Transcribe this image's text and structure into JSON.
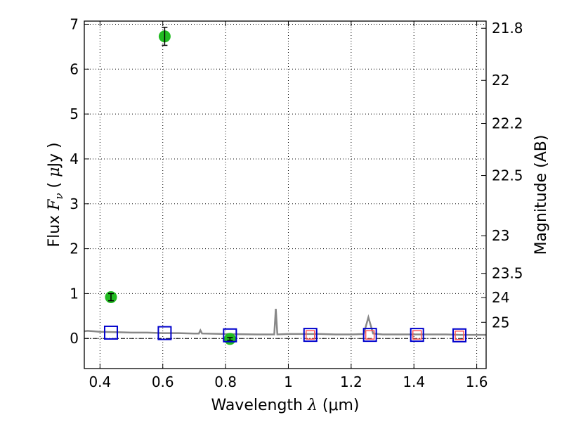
{
  "chart_data": {
    "type": "scatter",
    "xlabel": {
      "prefix": "Wavelength  ",
      "symbol": "λ",
      "units": " (μm)"
    },
    "ylabel": {
      "prefix": "Flux  ",
      "symbol": "F",
      "subscript": "ν",
      "units_open": "  ( ",
      "units_mu": "μ",
      "units_close": "Jy )"
    },
    "y2label": "Magnitude (AB)",
    "xlim": [
      0.35,
      1.63
    ],
    "ylim": [
      -0.67,
      7.07
    ],
    "grid": true,
    "x_ticks": [
      {
        "value": 0.4,
        "label": "0.4"
      },
      {
        "value": 0.6,
        "label": "0.6"
      },
      {
        "value": 0.8,
        "label": "0.8"
      },
      {
        "value": 1.0,
        "label": "1"
      },
      {
        "value": 1.2,
        "label": "1.2"
      },
      {
        "value": 1.4,
        "label": "1.4"
      },
      {
        "value": 1.6,
        "label": "1.6"
      }
    ],
    "y_ticks": [
      {
        "value": 0,
        "label": "0"
      },
      {
        "value": 1,
        "label": "1"
      },
      {
        "value": 2,
        "label": "2"
      },
      {
        "value": 3,
        "label": "3"
      },
      {
        "value": 4,
        "label": "4"
      },
      {
        "value": 5,
        "label": "5"
      },
      {
        "value": 6,
        "label": "6"
      },
      {
        "value": 7,
        "label": "7"
      }
    ],
    "y2_ticks": [
      {
        "flux": 6.91,
        "label": "21.8"
      },
      {
        "flux": 5.75,
        "label": "22"
      },
      {
        "flux": 4.79,
        "label": "22.2"
      },
      {
        "flux": 3.63,
        "label": "22.5"
      },
      {
        "flux": 2.29,
        "label": "23"
      },
      {
        "flux": 1.45,
        "label": "23.5"
      },
      {
        "flux": 0.91,
        "label": "24"
      },
      {
        "flux": 0.36,
        "label": "25"
      }
    ],
    "series": [
      {
        "marker": "circle",
        "color": "#22bb22",
        "points": [
          {
            "x": 0.435,
            "y": 0.92,
            "err": 0.08
          },
          {
            "x": 0.606,
            "y": 6.73,
            "err": 0.2
          },
          {
            "x": 0.814,
            "y": -0.01,
            "err": 0.03
          }
        ]
      },
      {
        "marker": "square-open",
        "color": "#0000cc",
        "points": [
          {
            "x": 0.435,
            "y": 0.13
          },
          {
            "x": 0.606,
            "y": 0.12
          },
          {
            "x": 0.814,
            "y": 0.07
          },
          {
            "x": 1.07,
            "y": 0.08
          },
          {
            "x": 1.26,
            "y": 0.08
          },
          {
            "x": 1.41,
            "y": 0.08
          },
          {
            "x": 1.545,
            "y": 0.07
          }
        ]
      },
      {
        "marker": "square-open",
        "color": "#ff5555",
        "points": [
          {
            "x": 1.07,
            "y": 0.08
          },
          {
            "x": 1.26,
            "y": 0.08
          },
          {
            "x": 1.41,
            "y": 0.08
          },
          {
            "x": 1.545,
            "y": 0.07
          }
        ]
      }
    ],
    "model_spectrum": {
      "color": "#888888",
      "points": [
        [
          0.35,
          0.16
        ],
        [
          0.36,
          0.17
        ],
        [
          0.38,
          0.16
        ],
        [
          0.4,
          0.15
        ],
        [
          0.45,
          0.14
        ],
        [
          0.5,
          0.13
        ],
        [
          0.55,
          0.13
        ],
        [
          0.6,
          0.12
        ],
        [
          0.65,
          0.12
        ],
        [
          0.7,
          0.11
        ],
        [
          0.715,
          0.11
        ],
        [
          0.72,
          0.18
        ],
        [
          0.725,
          0.11
        ],
        [
          0.8,
          0.1
        ],
        [
          0.9,
          0.09
        ],
        [
          0.955,
          0.09
        ],
        [
          0.96,
          0.66
        ],
        [
          0.965,
          0.09
        ],
        [
          1.0,
          0.1
        ],
        [
          1.05,
          0.1
        ],
        [
          1.1,
          0.1
        ],
        [
          1.15,
          0.09
        ],
        [
          1.2,
          0.09
        ],
        [
          1.24,
          0.1
        ],
        [
          1.255,
          0.47
        ],
        [
          1.27,
          0.11
        ],
        [
          1.3,
          0.09
        ],
        [
          1.35,
          0.09
        ],
        [
          1.4,
          0.09
        ],
        [
          1.5,
          0.09
        ],
        [
          1.55,
          0.08
        ],
        [
          1.63,
          0.08
        ]
      ]
    },
    "reference_line": {
      "y": 0
    }
  }
}
